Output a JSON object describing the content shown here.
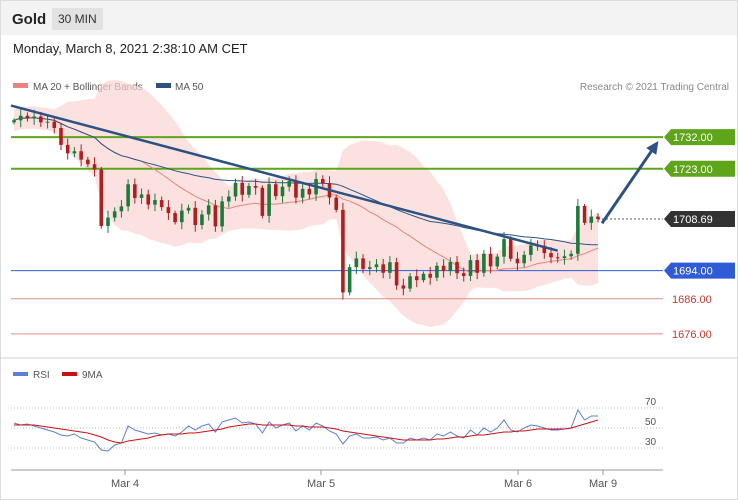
{
  "header": {
    "symbol": "Gold",
    "timeframe": "30 MIN",
    "date": "Monday, March 8, 2021 2:38:10 AM CET"
  },
  "legend": {
    "ma20": "MA 20 + Bollinger Bands",
    "ma50": "MA 50",
    "credit": "Research © 2021 Trading Central"
  },
  "colors": {
    "ma20": "#e8847f",
    "ma50": "#2c5282",
    "resistance": "#5ea51c",
    "support": "#2f5bd6",
    "support_lower": "#e08a84",
    "trendline": "#2c5282",
    "rsi": "#5b7fd6",
    "rsi_ma": "#cc1111",
    "price_up": "#1f7a3a",
    "price_down": "#b01e1e"
  },
  "chart_data": [
    {
      "type": "candlestick",
      "xlabels": [
        "Mar 4",
        "Mar 5",
        "Mar 6",
        "Mar 9"
      ],
      "ylim": [
        1670,
        1744
      ],
      "levels": [
        {
          "label": "1732.00",
          "value": 1732.0,
          "kind": "resistance"
        },
        {
          "label": "1723.00",
          "value": 1723.0,
          "kind": "resistance"
        },
        {
          "label": "1708.69",
          "value": 1708.69,
          "kind": "current"
        },
        {
          "label": "1694.00",
          "value": 1694.0,
          "kind": "support"
        },
        {
          "label": "1686.00",
          "value": 1686.0,
          "kind": "support-lower"
        },
        {
          "label": "1676.00",
          "value": 1676.0,
          "kind": "support-lower"
        }
      ],
      "close": [
        1736.8,
        1738.1,
        1737.4,
        1737.9,
        1736.2,
        1736.4,
        1734.6,
        1729.8,
        1727.4,
        1728.0,
        1725.6,
        1724.3,
        1722.8,
        1706.7,
        1709.1,
        1710.9,
        1712.3,
        1718.6,
        1714.7,
        1715.7,
        1712.8,
        1714.1,
        1712.1,
        1710.4,
        1707.8,
        1711.1,
        1711.9,
        1707.0,
        1710.0,
        1712.6,
        1706.6,
        1713.7,
        1715.1,
        1719.0,
        1715.6,
        1718.1,
        1717.6,
        1709.6,
        1718.6,
        1715.2,
        1717.9,
        1719.5,
        1714.8,
        1717.3,
        1715.7,
        1720.1,
        1718.9,
        1714.8,
        1711.3,
        1687.8,
        1695.0,
        1697.5,
        1694.5,
        1695.0,
        1695.8,
        1693.4,
        1696.4,
        1689.8,
        1688.9,
        1692.4,
        1691.3,
        1693.1,
        1692.0,
        1695.4,
        1693.9,
        1696.5,
        1693.3,
        1692.5,
        1697.0,
        1693.4,
        1698.8,
        1695.2,
        1698.0,
        1703.0,
        1697.4,
        1696.1,
        1698.5,
        1701.2,
        1701.1,
        1699.0,
        1697.8,
        1697.6,
        1698.1,
        1698.8,
        1712.4,
        1707.6,
        1709.4,
        1708.7
      ],
      "rsi": {
        "yticks": [
          30,
          50,
          70
        ],
        "series": [
          {
            "name": "RSI",
            "values": [
              55,
              53,
              54,
              52,
              50,
              48,
              46,
              43,
              42,
              44,
              40,
              38,
              36,
              28,
              27,
              33,
              35,
              52,
              48,
              46,
              44,
              45,
              43,
              44,
              42,
              46,
              52,
              48,
              52,
              54,
              46,
              56,
              58,
              60,
              55,
              56,
              54,
              45,
              56,
              50,
              53,
              55,
              47,
              52,
              48,
              55,
              52,
              47,
              44,
              34,
              42,
              44,
              40,
              40,
              41,
              38,
              40,
              35,
              35,
              40,
              38,
              40,
              38,
              44,
              42,
              46,
              42,
              40,
              48,
              43,
              50,
              46,
              50,
              58,
              48,
              46,
              50,
              53,
              52,
              50,
              48,
              48,
              49,
              50,
              68,
              58,
              62,
              62
            ]
          },
          {
            "name": "9MA",
            "values": [
              53,
              53,
              53,
              53,
              52,
              51,
              50,
              49,
              48,
              47,
              46,
              45,
              43,
              41,
              38,
              36,
              35,
              37,
              38,
              39,
              40,
              42,
              43,
              44,
              44,
              44,
              45,
              45,
              46,
              47,
              48,
              49,
              51,
              52,
              53,
              54,
              54,
              53,
              53,
              53,
              53,
              53,
              52,
              52,
              51,
              51,
              51,
              50,
              49,
              47,
              46,
              45,
              44,
              43,
              42,
              41,
              40,
              39,
              38,
              38,
              38,
              38,
              38,
              39,
              39,
              40,
              41,
              41,
              42,
              43,
              43,
              44,
              45,
              46,
              46,
              47,
              47,
              48,
              49,
              49,
              49,
              49,
              49,
              50,
              52,
              54,
              56,
              58
            ]
          }
        ]
      }
    }
  ]
}
